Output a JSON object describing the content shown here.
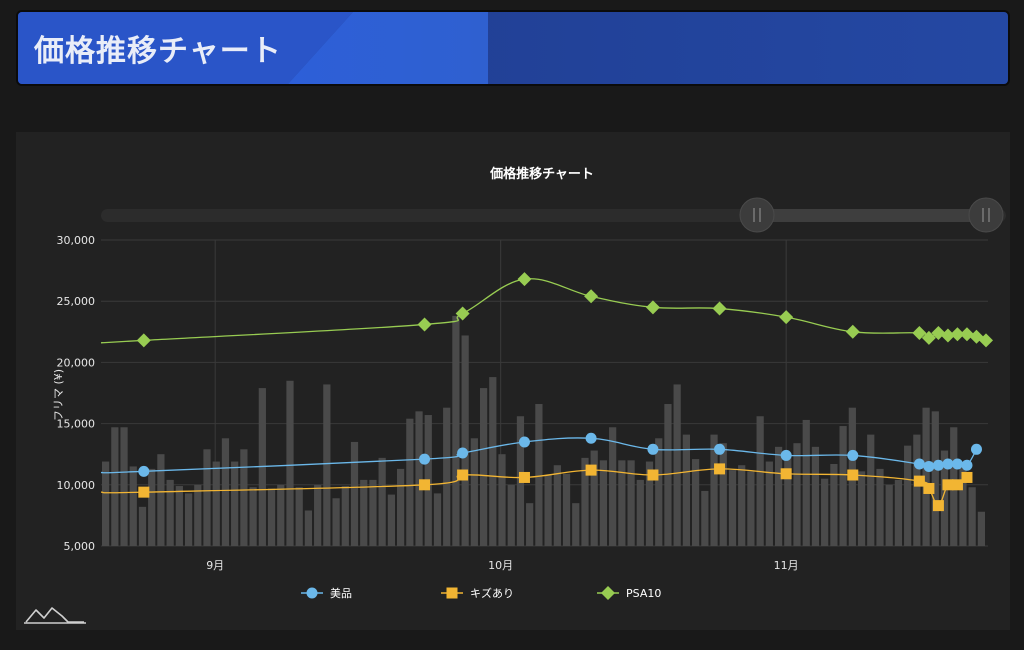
{
  "header": {
    "title": "価格推移チャート"
  },
  "chart_data": {
    "type": "bar+line",
    "title": "価格推移チャート",
    "ylabel": "フリマ (¥)",
    "ylim": [
      5000,
      30000
    ],
    "yticks": [
      5000,
      10000,
      15000,
      20000,
      25000,
      30000
    ],
    "ytick_labels": [
      "5,000",
      "10,000",
      "15,000",
      "20,000",
      "25,000",
      "30,000"
    ],
    "x_labels": [
      {
        "label": "9月",
        "day": 12
      },
      {
        "label": "10月",
        "day": 42
      },
      {
        "label": "11月",
        "day": 72
      }
    ],
    "x_range": [
      0,
      93
    ],
    "volume_bars": [
      11900,
      14700,
      14700,
      11500,
      8200,
      11300,
      12500,
      10400,
      9900,
      9300,
      10000,
      12900,
      11900,
      13800,
      11900,
      12900,
      9800,
      17900,
      9700,
      10000,
      18500,
      9800,
      7900,
      10000,
      18200,
      8900,
      9900,
      13500,
      10400,
      10400,
      12200,
      9200,
      11300,
      15400,
      16000,
      15700,
      9300,
      16300,
      23800,
      22200,
      13800,
      17900,
      18800,
      12500,
      10000,
      15600,
      8500,
      16600,
      10800,
      11600,
      10900,
      8500,
      12200,
      12800,
      12000,
      14700,
      12000,
      12000,
      10400,
      11900,
      13800,
      16600,
      18200,
      14100,
      12100,
      9500,
      14100,
      13400,
      11200,
      11600,
      11100,
      15600,
      11900,
      13100,
      12500,
      13400,
      15300,
      13100,
      10500,
      11700,
      14800,
      16300,
      11100,
      14100,
      11300,
      10000,
      10400,
      13200,
      14100,
      16300,
      16000,
      12800,
      14700,
      11400,
      9800,
      7800
    ],
    "series": [
      {
        "name": "美品",
        "color": "#6bb8ea",
        "marker": "circle",
        "points": [
          [
            0,
            11000
          ],
          [
            4.5,
            11100
          ],
          [
            34,
            12100
          ],
          [
            38,
            12600
          ],
          [
            44.5,
            13500
          ],
          [
            51.5,
            13800
          ],
          [
            58,
            12900
          ],
          [
            65,
            12900
          ],
          [
            72,
            12400
          ],
          [
            79,
            12400
          ],
          [
            86,
            11700
          ],
          [
            87,
            11500
          ],
          [
            88,
            11600
          ],
          [
            89,
            11700
          ],
          [
            90,
            11700
          ],
          [
            91,
            11600
          ],
          [
            92,
            12900
          ]
        ]
      },
      {
        "name": "キズあり",
        "color": "#f2b533",
        "marker": "square",
        "points": [
          [
            0,
            9400
          ],
          [
            4.5,
            9400
          ],
          [
            34,
            10000
          ],
          [
            38,
            10800
          ],
          [
            44.5,
            10600
          ],
          [
            51.5,
            11200
          ],
          [
            58,
            10800
          ],
          [
            65,
            11300
          ],
          [
            72,
            10900
          ],
          [
            79,
            10800
          ],
          [
            86,
            10300
          ],
          [
            87,
            9700
          ],
          [
            88,
            8300
          ],
          [
            89,
            10000
          ],
          [
            90,
            10000
          ],
          [
            91,
            10600
          ]
        ]
      },
      {
        "name": "PSA10",
        "color": "#98cc52",
        "marker": "diamond",
        "points": [
          [
            0,
            21600
          ],
          [
            4.5,
            21800
          ],
          [
            34,
            23100
          ],
          [
            38,
            24000
          ],
          [
            44.5,
            26800
          ],
          [
            51.5,
            25400
          ],
          [
            58,
            24500
          ],
          [
            65,
            24400
          ],
          [
            72,
            23700
          ],
          [
            79,
            22500
          ],
          [
            86,
            22400
          ],
          [
            87,
            22000
          ],
          [
            88,
            22400
          ],
          [
            89,
            22200
          ],
          [
            90,
            22300
          ],
          [
            91,
            22300
          ],
          [
            92,
            22100
          ],
          [
            93,
            21800
          ]
        ]
      }
    ],
    "legend_position": "bottom-center"
  }
}
